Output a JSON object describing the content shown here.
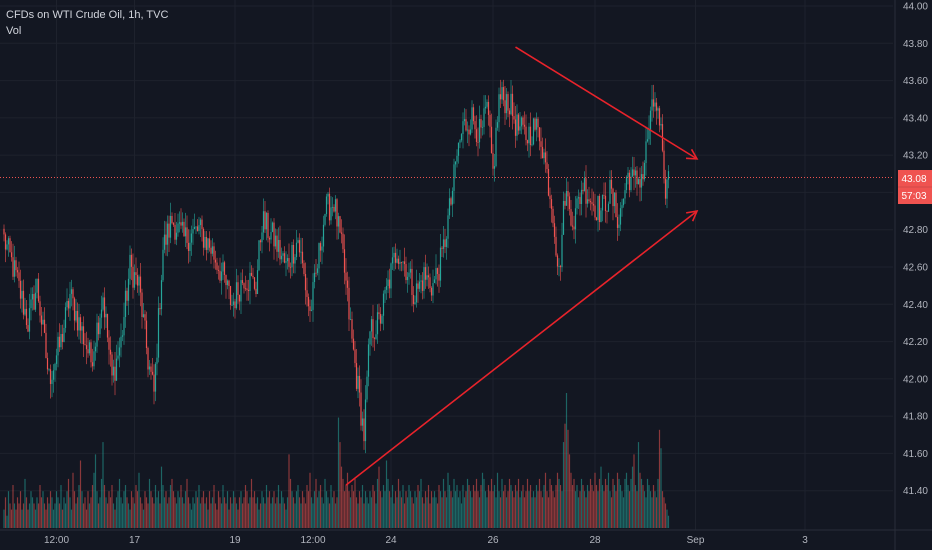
{
  "legend": {
    "symbol": "CFDs on WTI Crude Oil, 1h, TVC",
    "volume_label": "Vol"
  },
  "price_tag": {
    "price": "43.08",
    "countdown": "57:03"
  },
  "colors": {
    "background": "#131722",
    "up": "#26a69a",
    "down": "#ef5350",
    "annotation": "#e8232b"
  },
  "chart_data": {
    "type": "candlestick",
    "interval": "1h",
    "y_ticks": [
      "44.00",
      "43.80",
      "43.60",
      "43.40",
      "43.20",
      "43.00",
      "42.80",
      "42.60",
      "42.40",
      "42.20",
      "42.00",
      "41.80",
      "41.60",
      "41.40"
    ],
    "y_range": [
      41.2,
      44.0
    ],
    "x_ticks": [
      {
        "label": "12:00",
        "i": 35
      },
      {
        "label": "17",
        "i": 87
      },
      {
        "label": "19",
        "i": 154
      },
      {
        "label": "12:00",
        "i": 206
      },
      {
        "label": "24",
        "i": 258
      },
      {
        "label": "26",
        "i": 326
      },
      {
        "label": "28",
        "i": 394
      },
      {
        "label": "Sep",
        "i": 461
      },
      {
        "label": "3",
        "i": 534
      }
    ],
    "price_path": [
      [
        0,
        42.75
      ],
      [
        8,
        42.55
      ],
      [
        16,
        42.3
      ],
      [
        22,
        42.5
      ],
      [
        30,
        42.0
      ],
      [
        38,
        42.2
      ],
      [
        44,
        42.45
      ],
      [
        52,
        42.25
      ],
      [
        58,
        42.1
      ],
      [
        66,
        42.45
      ],
      [
        72,
        42.0
      ],
      [
        78,
        42.2
      ],
      [
        84,
        42.6
      ],
      [
        90,
        42.5
      ],
      [
        96,
        42.1
      ],
      [
        100,
        41.92
      ],
      [
        106,
        42.7
      ],
      [
        112,
        42.85
      ],
      [
        120,
        42.75
      ],
      [
        130,
        42.8
      ],
      [
        138,
        42.7
      ],
      [
        146,
        42.55
      ],
      [
        152,
        42.4
      ],
      [
        160,
        42.55
      ],
      [
        168,
        42.5
      ],
      [
        172,
        42.85
      ],
      [
        180,
        42.75
      ],
      [
        188,
        42.6
      ],
      [
        196,
        42.75
      ],
      [
        204,
        42.35
      ],
      [
        208,
        42.55
      ],
      [
        214,
        42.9
      ],
      [
        220,
        42.95
      ],
      [
        226,
        42.65
      ],
      [
        232,
        42.2
      ],
      [
        236,
        41.95
      ],
      [
        240,
        41.7
      ],
      [
        244,
        42.25
      ],
      [
        250,
        42.3
      ],
      [
        256,
        42.5
      ],
      [
        262,
        42.7
      ],
      [
        268,
        42.6
      ],
      [
        274,
        42.45
      ],
      [
        280,
        42.55
      ],
      [
        286,
        42.5
      ],
      [
        292,
        42.65
      ],
      [
        298,
        42.95
      ],
      [
        302,
        43.2
      ],
      [
        306,
        43.35
      ],
      [
        312,
        43.4
      ],
      [
        318,
        43.3
      ],
      [
        322,
        43.45
      ],
      [
        326,
        43.1
      ],
      [
        330,
        43.5
      ],
      [
        336,
        43.5
      ],
      [
        342,
        43.35
      ],
      [
        348,
        43.3
      ],
      [
        354,
        43.35
      ],
      [
        358,
        43.3
      ],
      [
        362,
        43.1
      ],
      [
        366,
        42.9
      ],
      [
        370,
        42.55
      ],
      [
        374,
        43.0
      ],
      [
        380,
        42.85
      ],
      [
        386,
        43.05
      ],
      [
        392,
        42.95
      ],
      [
        398,
        42.9
      ],
      [
        404,
        43.0
      ],
      [
        410,
        42.85
      ],
      [
        416,
        43.1
      ],
      [
        420,
        43.05
      ],
      [
        426,
        43.1
      ],
      [
        430,
        43.35
      ],
      [
        434,
        43.5
      ],
      [
        438,
        43.3
      ],
      [
        440,
        43.0
      ],
      [
        443,
        43.08
      ]
    ],
    "volumes": [
      3,
      5,
      2,
      6,
      4,
      3,
      7,
      4,
      3,
      5,
      4,
      6,
      3,
      4,
      8,
      5,
      3,
      4,
      6,
      5,
      4,
      3,
      5,
      4,
      7,
      5,
      6,
      4,
      3,
      5,
      4,
      6,
      5,
      3,
      4,
      6,
      5,
      4,
      7,
      3,
      5,
      4,
      6,
      8,
      5,
      3,
      9,
      6,
      4,
      5,
      7,
      11,
      6,
      4,
      5,
      3,
      6,
      4,
      5,
      7,
      9,
      12,
      6,
      4,
      5,
      8,
      14,
      7,
      5,
      4,
      6,
      5,
      7,
      4,
      3,
      5,
      6,
      8,
      5,
      4,
      6,
      7,
      5,
      4,
      3,
      6,
      5,
      4,
      7,
      6,
      9,
      5,
      4,
      3,
      6,
      5,
      4,
      8,
      6,
      5,
      4,
      7,
      5,
      6,
      4,
      10,
      7,
      5,
      6,
      4,
      5,
      7,
      8,
      6,
      5,
      4,
      6,
      5,
      7,
      5,
      4,
      6,
      8,
      5,
      4,
      3,
      5,
      4,
      6,
      5,
      7,
      4,
      5,
      6,
      4,
      5,
      3,
      6,
      4,
      5,
      7,
      4,
      3,
      6,
      5,
      4,
      7,
      5,
      4,
      6,
      3,
      5,
      4,
      6,
      5,
      4,
      3,
      5,
      6,
      4,
      5,
      7,
      6,
      4,
      5,
      8,
      5,
      6,
      4,
      5,
      3,
      4,
      6,
      5,
      4,
      7,
      5,
      6,
      4,
      5,
      6,
      4,
      5,
      7,
      4,
      6,
      5,
      4,
      3,
      5,
      12,
      8,
      6,
      5,
      4,
      6,
      7,
      5,
      4,
      6,
      5,
      4,
      7,
      6,
      9,
      5,
      4,
      6,
      8,
      5,
      6,
      7,
      5,
      4,
      8,
      6,
      5,
      4,
      7,
      5,
      6,
      4,
      5,
      18,
      14,
      10,
      8,
      6,
      7,
      9,
      6,
      5,
      7,
      6,
      8,
      5,
      4,
      6,
      5,
      7,
      4,
      6,
      5,
      4,
      6,
      5,
      7,
      6,
      4,
      8,
      10,
      6,
      5,
      7,
      6,
      11,
      8,
      6,
      5,
      7,
      4,
      6,
      5,
      8,
      6,
      5,
      7,
      4,
      6,
      5,
      7,
      6,
      5,
      4,
      6,
      5,
      7,
      6,
      8,
      5,
      4,
      6,
      5,
      7,
      4,
      6,
      5,
      6,
      5,
      4,
      7,
      6,
      5,
      8,
      6,
      5,
      9,
      7,
      6,
      5,
      8,
      6,
      7,
      5,
      6,
      4,
      7,
      5,
      6,
      8,
      7,
      6,
      5,
      7,
      6,
      8,
      6,
      5,
      7,
      9,
      8,
      6,
      5,
      7,
      6,
      8,
      6,
      7,
      5,
      9,
      6,
      5,
      8,
      6,
      7,
      5,
      6,
      8,
      7,
      6,
      5,
      7,
      6,
      8,
      5,
      6,
      7,
      5,
      6,
      8,
      6,
      7,
      5,
      6,
      5,
      7,
      6,
      8,
      6,
      5,
      7,
      9,
      6,
      5,
      8,
      7,
      6,
      5,
      7,
      9,
      8,
      7,
      6,
      14,
      17,
      22,
      16,
      12,
      9,
      7,
      8,
      6,
      7,
      5,
      6,
      8,
      7,
      6,
      5,
      7,
      6,
      8,
      7,
      6,
      9,
      7,
      6,
      8,
      10,
      7,
      6,
      8,
      7,
      9,
      6,
      5,
      8,
      7,
      6,
      9,
      8,
      7,
      6,
      5,
      8,
      9,
      7,
      6,
      8,
      10,
      12,
      7,
      6,
      14,
      9,
      8,
      7,
      6,
      5,
      8,
      7,
      6,
      5,
      7,
      6,
      5,
      8,
      16,
      13,
      6,
      5,
      4,
      3,
      2
    ],
    "annotations": [
      {
        "type": "trendline",
        "from": [
          228,
          41.43
        ],
        "to": [
          462,
          42.9
        ],
        "arrow": true
      },
      {
        "type": "trendline",
        "from": [
          341,
          43.78
        ],
        "to": [
          462,
          43.18
        ],
        "arrow": true
      }
    ]
  }
}
